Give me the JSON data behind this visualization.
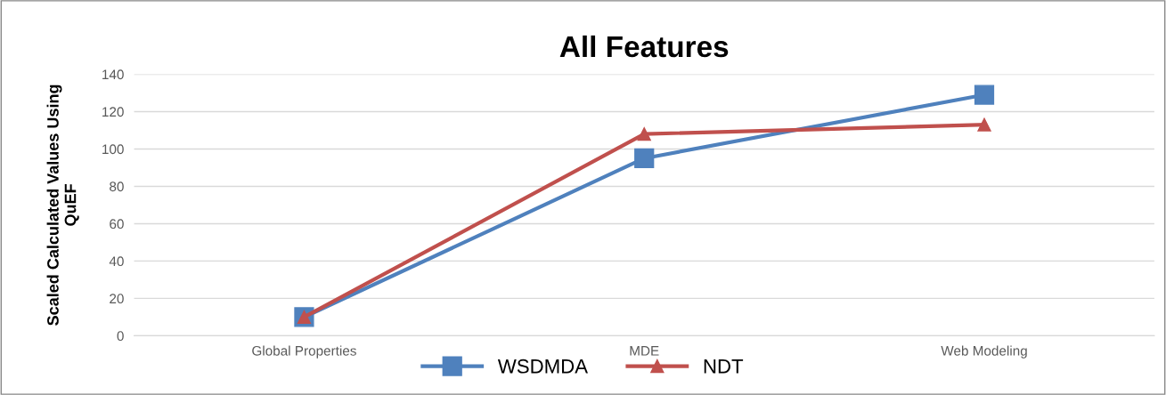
{
  "chart_data": {
    "type": "line",
    "title": "All Features",
    "ylabel": "Scaled Calculated Values Using\nQuEF",
    "categories": [
      "Global Properties",
      "MDE",
      "Web Modeling"
    ],
    "series": [
      {
        "name": "WSDMDA",
        "color": "#4f81bd",
        "marker": "square",
        "values": [
          10,
          95,
          129
        ]
      },
      {
        "name": "NDT",
        "color": "#c0504d",
        "marker": "triangle",
        "values": [
          10,
          108,
          113
        ]
      }
    ],
    "ylim": [
      0,
      140
    ],
    "yticks": [
      0,
      20,
      40,
      60,
      80,
      100,
      120,
      140
    ],
    "grid": "y",
    "legend": "bottom"
  }
}
